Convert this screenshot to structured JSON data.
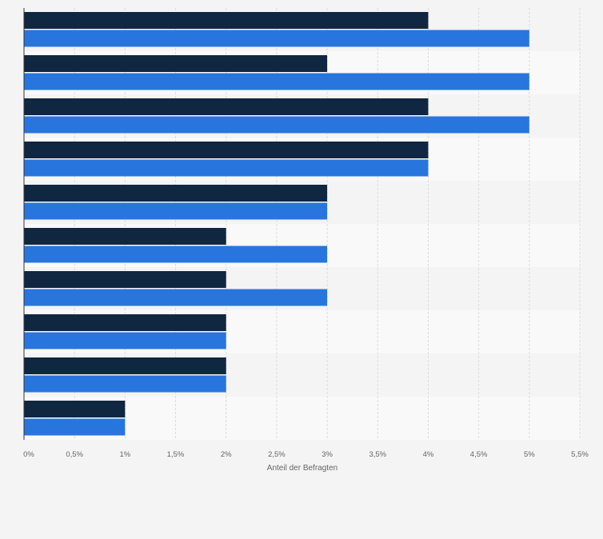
{
  "chart_data": {
    "type": "bar",
    "orientation": "horizontal",
    "xlabel": "Anteil der Befragten",
    "xlim": [
      0,
      5.5
    ],
    "x_ticks": [
      0,
      0.5,
      1,
      1.5,
      2,
      2.5,
      3,
      3.5,
      4,
      4.5,
      5,
      5.5
    ],
    "x_tick_labels": [
      "0%",
      "0,5%",
      "1%",
      "1,5%",
      "2%",
      "2,5%",
      "3%",
      "3,5%",
      "4%",
      "4,5%",
      "5%",
      "5,5%"
    ],
    "grid": true,
    "legend": "none",
    "categories": [
      "",
      "",
      "",
      "",
      "",
      "",
      "",
      "",
      "",
      ""
    ],
    "series": [
      {
        "color": "#0f2741",
        "values": [
          4,
          3,
          4,
          4,
          3,
          2,
          2,
          2,
          2,
          1
        ]
      },
      {
        "color": "#2876dd",
        "values": [
          5,
          5,
          5,
          4,
          3,
          3,
          3,
          2,
          2,
          1
        ]
      }
    ],
    "band_colors": [
      "#f4f4f4",
      "#f9f9f9"
    ]
  }
}
